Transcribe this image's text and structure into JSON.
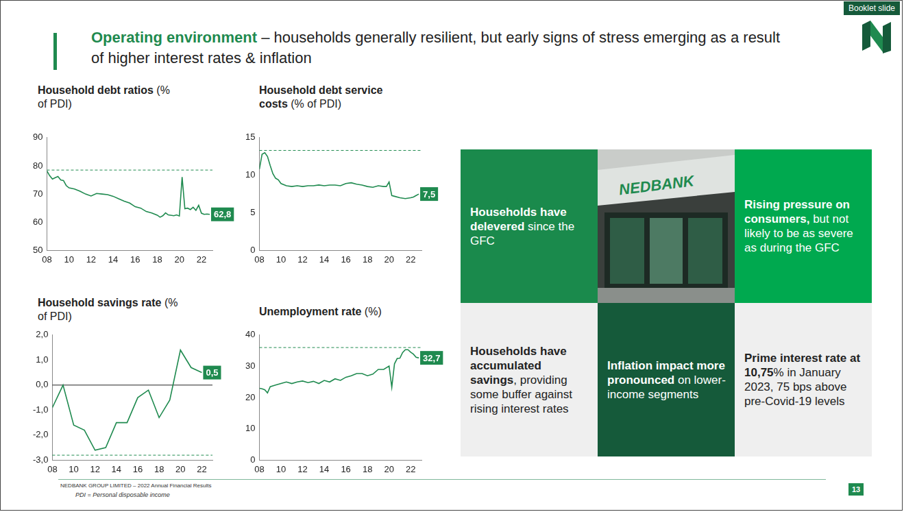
{
  "header": {
    "title_bold": "Operating environment",
    "title_rest": "– households generally resilient, but early signs of stress emerging as a result of higher interest rates & inflation",
    "badge": "Booklet slide",
    "page_number": "13"
  },
  "chart_data": [
    {
      "type": "line",
      "title": "Household debt ratios",
      "subtitle": "(% of PDI)",
      "x": [
        2008,
        2008.25,
        2008.5,
        2008.75,
        2009,
        2009.25,
        2009.5,
        2009.75,
        2010,
        2010.5,
        2011,
        2011.5,
        2012,
        2012.5,
        2013,
        2013.5,
        2014,
        2014.5,
        2015,
        2015.5,
        2016,
        2016.5,
        2017,
        2017.5,
        2018,
        2018.25,
        2018.5,
        2018.75,
        2019,
        2019.5,
        2019.75,
        2020,
        2020.25,
        2020.5,
        2020.75,
        2021,
        2021.25,
        2021.5,
        2021.75,
        2022,
        2022.25,
        2022.5,
        2022.75
      ],
      "values": [
        78.2,
        76.5,
        75.3,
        75.8,
        76.2,
        75,
        74.8,
        73,
        72.2,
        71.8,
        71,
        70,
        69.3,
        70.2,
        70,
        69.8,
        69.2,
        68.3,
        67.5,
        66.8,
        65.5,
        65,
        63.8,
        63.3,
        62.5,
        61.8,
        62.3,
        63.3,
        62.6,
        62.3,
        62.6,
        62.2,
        76,
        64.8,
        65,
        64.5,
        65.3,
        64.2,
        66,
        63.2,
        62.8,
        62.9,
        62.8
      ],
      "color": "#1f8a4f",
      "line_style": "solid",
      "xlim": [
        2008,
        2023
      ],
      "xticks": [
        {
          "value": 2008,
          "label": "08"
        },
        {
          "value": 2010,
          "label": "10"
        },
        {
          "value": 2012,
          "label": "12"
        },
        {
          "value": 2014,
          "label": "14"
        },
        {
          "value": 2016,
          "label": "16"
        },
        {
          "value": 2018,
          "label": "18"
        },
        {
          "value": 2020,
          "label": "20"
        },
        {
          "value": 2022,
          "label": "22"
        }
      ],
      "ylim": [
        50,
        90
      ],
      "yticks": [
        50,
        60,
        70,
        80,
        90
      ],
      "grid": false,
      "reference_lines": [
        {
          "y": 78.5,
          "line_style": "dashed",
          "color": "#1f8a4f"
        }
      ],
      "annotations": [
        {
          "x": 2022.75,
          "y": 62.8,
          "label": "62,8"
        }
      ]
    },
    {
      "type": "line",
      "title": "Household debt service costs",
      "subtitle": "(% of PDI)",
      "x": [
        2008,
        2008.25,
        2008.5,
        2008.75,
        2009,
        2009.25,
        2009.5,
        2009.75,
        2010,
        2010.5,
        2011,
        2011.5,
        2012,
        2012.5,
        2013,
        2013.5,
        2014,
        2014.5,
        2015,
        2015.5,
        2016,
        2016.5,
        2017,
        2017.5,
        2018,
        2018.5,
        2019,
        2019.5,
        2019.75,
        2020,
        2020.25,
        2020.5,
        2021,
        2021.5,
        2022,
        2022.25,
        2022.5,
        2022.75
      ],
      "values": [
        10.8,
        12.8,
        13.0,
        12.5,
        11.3,
        10.2,
        9.6,
        9.4,
        8.9,
        8.6,
        8.5,
        8.6,
        8.5,
        8.6,
        8.6,
        8.7,
        8.6,
        8.7,
        8.7,
        8.6,
        8.9,
        9.0,
        8.8,
        8.7,
        8.5,
        8.4,
        8.6,
        8.5,
        8.5,
        9.1,
        7.3,
        7.2,
        7.0,
        6.9,
        7.0,
        7.1,
        7.3,
        7.5
      ],
      "color": "#1f8a4f",
      "line_style": "solid",
      "xlim": [
        2008,
        2023
      ],
      "xticks": [
        {
          "value": 2008,
          "label": "08"
        },
        {
          "value": 2010,
          "label": "10"
        },
        {
          "value": 2012,
          "label": "12"
        },
        {
          "value": 2014,
          "label": "14"
        },
        {
          "value": 2016,
          "label": "16"
        },
        {
          "value": 2018,
          "label": "18"
        },
        {
          "value": 2020,
          "label": "20"
        },
        {
          "value": 2022,
          "label": "22"
        }
      ],
      "ylim": [
        0,
        15
      ],
      "yticks": [
        0,
        5,
        10,
        15
      ],
      "grid": false,
      "reference_lines": [
        {
          "y": 13.3,
          "line_style": "dashed",
          "color": "#1f8a4f"
        }
      ],
      "annotations": [
        {
          "x": 2022.75,
          "y": 7.5,
          "label": "7,5"
        }
      ]
    },
    {
      "type": "line",
      "title": "Household savings rate",
      "subtitle": "(% of PDI)",
      "x": [
        2008,
        2009,
        2010,
        2011,
        2012,
        2013,
        2014,
        2015,
        2016,
        2017,
        2018,
        2019,
        2020,
        2021,
        2022
      ],
      "values": [
        -0.9,
        0.0,
        -1.6,
        -1.8,
        -2.6,
        -2.5,
        -1.5,
        -1.5,
        -0.5,
        -0.2,
        -1.3,
        -0.6,
        1.4,
        0.7,
        0.5
      ],
      "color": "#1f8a4f",
      "line_style": "solid",
      "xlim": [
        2008,
        2023
      ],
      "xticks": [
        {
          "value": 2008,
          "label": "08"
        },
        {
          "value": 2010,
          "label": "10"
        },
        {
          "value": 2012,
          "label": "12"
        },
        {
          "value": 2014,
          "label": "14"
        },
        {
          "value": 2016,
          "label": "16"
        },
        {
          "value": 2018,
          "label": "18"
        },
        {
          "value": 2020,
          "label": "20"
        },
        {
          "value": 2022,
          "label": "22"
        }
      ],
      "ylim": [
        -3,
        2
      ],
      "yticks": [
        {
          "value": -3,
          "label": "-3,0"
        },
        {
          "value": -2,
          "label": "-2,0"
        },
        {
          "value": -1,
          "label": "-1,0"
        },
        {
          "value": 0,
          "label": "0,0"
        },
        {
          "value": 1,
          "label": "1,0"
        },
        {
          "value": 2,
          "label": "2,0"
        }
      ],
      "grid": false,
      "reference_lines": [
        {
          "y": 0,
          "line_style": "solid",
          "color": "#222222"
        },
        {
          "y": -2.8,
          "line_style": "dashed",
          "color": "#1f8a4f"
        }
      ],
      "annotations": [
        {
          "x": 2022,
          "y": 0.5,
          "label": "0,5"
        }
      ]
    },
    {
      "type": "line",
      "title": "Unemployment rate",
      "subtitle": "(%)",
      "x": [
        2008,
        2008.25,
        2008.5,
        2008.75,
        2009,
        2009.5,
        2010,
        2010.5,
        2011,
        2011.5,
        2012,
        2012.5,
        2013,
        2013.5,
        2014,
        2014.5,
        2015,
        2015.5,
        2016,
        2016.5,
        2017,
        2017.5,
        2018,
        2018.5,
        2019,
        2019.5,
        2020,
        2020.25,
        2020.5,
        2020.75,
        2021,
        2021.25,
        2021.5,
        2021.75,
        2022,
        2022.25,
        2022.5,
        2022.75
      ],
      "values": [
        23,
        22.8,
        22.5,
        21.5,
        23.5,
        24,
        24.5,
        25,
        24.5,
        25,
        25.3,
        24.8,
        25.2,
        24.5,
        25.5,
        25,
        26,
        25.5,
        26.5,
        27,
        27.7,
        27.7,
        27,
        27.5,
        29,
        29,
        30.1,
        23.3,
        30.8,
        32.5,
        32.6,
        34.4,
        35.3,
        35.3,
        34.5,
        33.9,
        32.9,
        32.7
      ],
      "color": "#1f8a4f",
      "line_style": "solid",
      "xlim": [
        2008,
        2023
      ],
      "xticks": [
        {
          "value": 2008,
          "label": "08"
        },
        {
          "value": 2010,
          "label": "10"
        },
        {
          "value": 2012,
          "label": "12"
        },
        {
          "value": 2014,
          "label": "14"
        },
        {
          "value": 2016,
          "label": "16"
        },
        {
          "value": 2018,
          "label": "18"
        },
        {
          "value": 2020,
          "label": "20"
        },
        {
          "value": 2022,
          "label": "22"
        }
      ],
      "ylim": [
        0,
        40
      ],
      "yticks": [
        0,
        10,
        20,
        30,
        40
      ],
      "grid": false,
      "reference_lines": [
        {
          "y": 36,
          "line_style": "dashed",
          "color": "#1f8a4f"
        }
      ],
      "annotations": [
        {
          "x": 2022.75,
          "y": 32.7,
          "label": "32,7"
        }
      ]
    }
  ],
  "tiles": [
    {
      "bold": "Households have delevered",
      "text": "since the GFC",
      "color": "#1a8a4c"
    },
    {
      "image_sign": "NEDBANK"
    },
    {
      "bold": "Rising pressure on consumers,",
      "text": "but not likely to be as severe as during the GFC",
      "color": "#00a94f"
    },
    {
      "bold": "Households have accumulated savings",
      "text": ", providing some buffer against rising interest rates",
      "color": "#efefef"
    },
    {
      "bold": "Inflation impact more pronounced",
      "text": "on lower-income segments",
      "color": "#155a3a"
    },
    {
      "bold": "Prime interest rate at 10,75",
      "text": "% in January 2023, 75 bps above pre-Covid-19 levels",
      "color": "#efefef"
    }
  ],
  "footer": {
    "source": "NEDBANK GROUP LIMITED – 2022 Annual Financial Results",
    "note": "PDI = Personal disposable income"
  }
}
